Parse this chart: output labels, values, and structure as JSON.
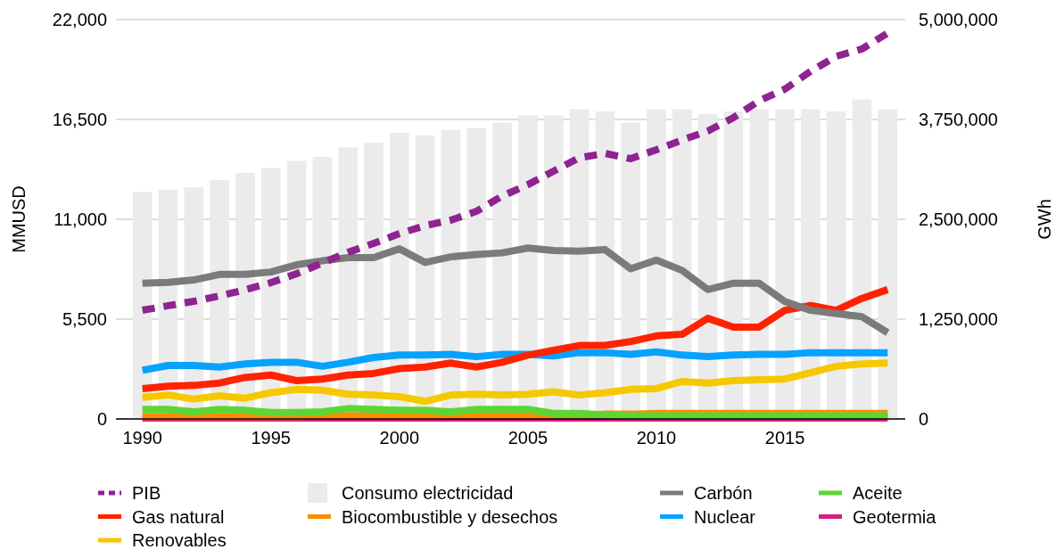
{
  "chart_data": {
    "type": "line",
    "categories": [
      "1990",
      null,
      null,
      null,
      null,
      "1995",
      null,
      null,
      null,
      null,
      "2000",
      null,
      null,
      null,
      null,
      "2005",
      null,
      null,
      null,
      null,
      "2010",
      null,
      null,
      null,
      null,
      "2015",
      null,
      null,
      null,
      null
    ],
    "ylabel": "MMUSD",
    "y2label": "GWh",
    "ylim": [
      0,
      22000
    ],
    "yticks": [
      {
        "value": 0,
        "label": "0"
      },
      {
        "value": 5500,
        "label": "5,500"
      },
      {
        "value": 11000,
        "label": "11,000"
      },
      {
        "value": 16500,
        "label": "16,500"
      },
      {
        "value": 22000,
        "label": "22,000"
      }
    ],
    "y2lim": [
      0,
      5000000
    ],
    "y2ticks": [
      {
        "value": 0,
        "label": "0"
      },
      {
        "value": 1250000,
        "label": "1,250,000"
      },
      {
        "value": 2500000,
        "label": "2,500,000"
      },
      {
        "value": 3750000,
        "label": "3,750,000"
      },
      {
        "value": 5000000,
        "label": "5,000,000"
      }
    ],
    "grid": "y",
    "legend": "bottom",
    "marker": "none",
    "series": [
      {
        "name": "PIB",
        "line_style": "dashed",
        "color": "#8e2392",
        "values": [
          5990,
          6240,
          6480,
          6780,
          7120,
          7510,
          8000,
          8590,
          9180,
          9670,
          10210,
          10650,
          10950,
          11440,
          12280,
          12910,
          13650,
          14390,
          14630,
          14340,
          14830,
          15370,
          15860,
          16600,
          17530,
          18170,
          19150,
          19980,
          20380,
          21260
        ]
      },
      {
        "name": "Consumo electricidad",
        "type": "bar",
        "axis": "y2",
        "color": "#ebebeb",
        "values": [
          2840000,
          2870000,
          2900000,
          2990000,
          3080000,
          3140000,
          3230000,
          3280000,
          3400000,
          3460000,
          3580000,
          3550000,
          3620000,
          3640000,
          3710000,
          3800000,
          3800000,
          3880000,
          3850000,
          3710000,
          3880000,
          3880000,
          3820000,
          3850000,
          3880000,
          3880000,
          3880000,
          3850000,
          4000000,
          3880000
        ]
      },
      {
        "name": "Carbón",
        "axis": "y2",
        "color": "#7b7b7b",
        "values": [
          1700000,
          1710000,
          1740000,
          1810000,
          1810000,
          1840000,
          1930000,
          1980000,
          2020000,
          2020000,
          2130000,
          1960000,
          2030000,
          2060000,
          2080000,
          2140000,
          2110000,
          2100000,
          2120000,
          1880000,
          1990000,
          1860000,
          1620000,
          1700000,
          1700000,
          1470000,
          1360000,
          1320000,
          1280000,
          1080000
        ]
      },
      {
        "name": "Aceite",
        "axis": "y2",
        "color": "#5dd634",
        "values": [
          120000,
          120000,
          90000,
          120000,
          110000,
          80000,
          80000,
          90000,
          130000,
          120000,
          110000,
          110000,
          90000,
          120000,
          120000,
          120000,
          70000,
          70000,
          50000,
          40000,
          40000,
          40000,
          40000,
          40000,
          40000,
          40000,
          40000,
          40000,
          40000,
          40000
        ]
      },
      {
        "name": "Gas natural",
        "axis": "y2",
        "color": "#ff2200",
        "values": [
          380000,
          410000,
          420000,
          450000,
          520000,
          550000,
          480000,
          500000,
          550000,
          570000,
          630000,
          650000,
          700000,
          650000,
          710000,
          800000,
          860000,
          920000,
          920000,
          970000,
          1040000,
          1060000,
          1260000,
          1150000,
          1150000,
          1360000,
          1420000,
          1360000,
          1510000,
          1620000
        ]
      },
      {
        "name": "Biocombustible y desechos",
        "axis": "y2",
        "color": "#ff8c00",
        "values": [
          30000,
          30000,
          30000,
          30000,
          30000,
          30000,
          30000,
          40000,
          40000,
          40000,
          40000,
          40000,
          50000,
          50000,
          50000,
          50000,
          50000,
          50000,
          60000,
          60000,
          70000,
          70000,
          70000,
          70000,
          70000,
          70000,
          70000,
          70000,
          70000,
          70000
        ]
      },
      {
        "name": "Nuclear",
        "axis": "y2",
        "color": "#06a2ff",
        "values": [
          610000,
          670000,
          670000,
          650000,
          690000,
          710000,
          710000,
          660000,
          710000,
          770000,
          800000,
          800000,
          810000,
          780000,
          810000,
          810000,
          790000,
          830000,
          830000,
          810000,
          840000,
          800000,
          780000,
          800000,
          810000,
          810000,
          830000,
          830000,
          830000,
          830000
        ]
      },
      {
        "name": "Geotermia",
        "axis": "y2",
        "color": "#d81f7f",
        "values": [
          10000,
          10000,
          10000,
          10000,
          10000,
          10000,
          10000,
          10000,
          10000,
          10000,
          10000,
          10000,
          10000,
          10000,
          10000,
          10000,
          10000,
          10000,
          10000,
          10000,
          10000,
          10000,
          10000,
          10000,
          10000,
          10000,
          10000,
          10000,
          10000,
          10000
        ]
      },
      {
        "name": "Renovables",
        "axis": "y2",
        "color": "#f5c800",
        "values": [
          270000,
          300000,
          250000,
          290000,
          260000,
          330000,
          370000,
          360000,
          310000,
          300000,
          280000,
          220000,
          300000,
          310000,
          300000,
          310000,
          340000,
          300000,
          330000,
          370000,
          380000,
          470000,
          450000,
          480000,
          490000,
          500000,
          580000,
          660000,
          690000,
          700000
        ]
      }
    ]
  }
}
